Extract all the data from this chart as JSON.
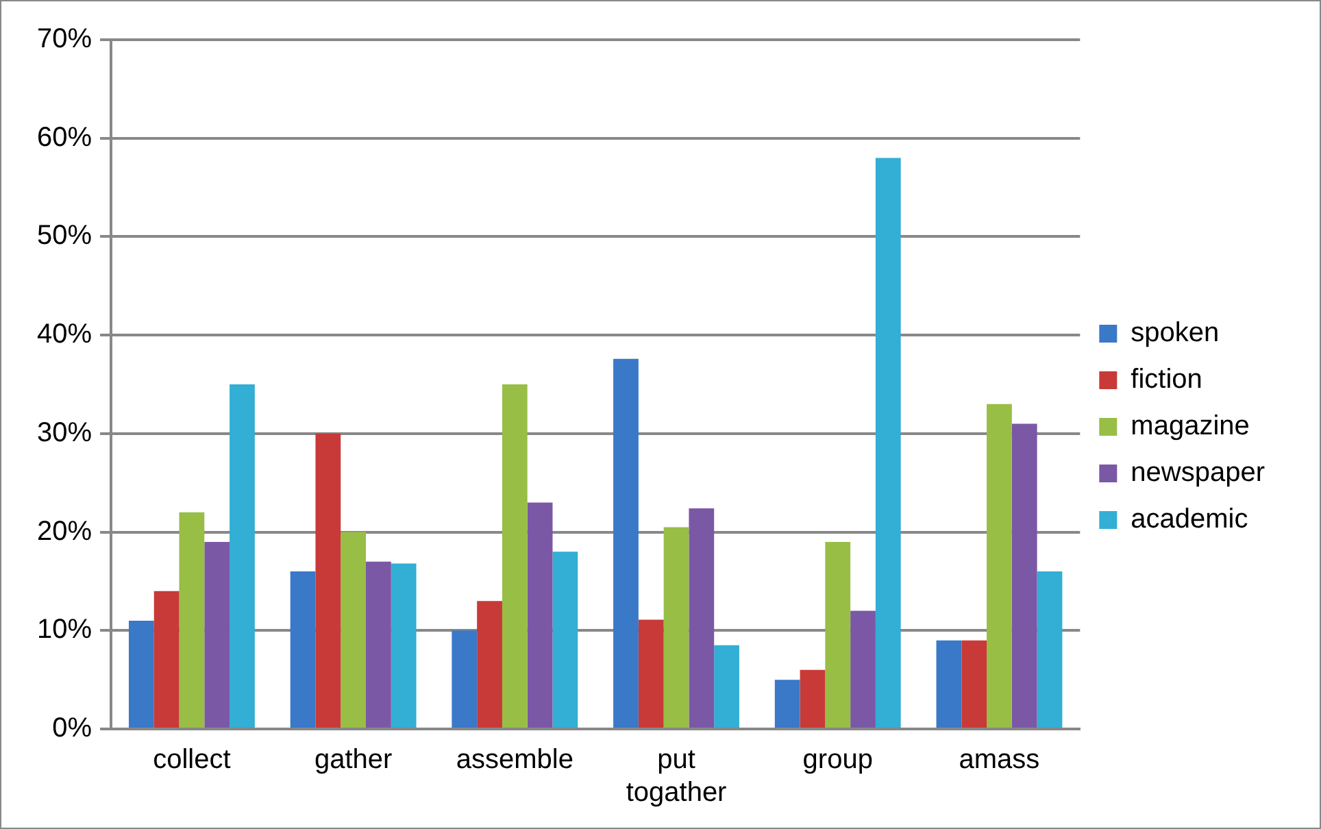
{
  "chart_data": {
    "type": "bar",
    "categories": [
      "collect",
      "gather",
      "assemble",
      "put togather",
      "group",
      "amass"
    ],
    "series": [
      {
        "name": "spoken",
        "color": "#3a78c8",
        "values": [
          11,
          16,
          10,
          37.6,
          5,
          9
        ]
      },
      {
        "name": "fiction",
        "color": "#c83a37",
        "values": [
          14,
          30,
          13,
          11.1,
          6,
          9
        ]
      },
      {
        "name": "magazine",
        "color": "#98be46",
        "values": [
          22,
          20,
          35,
          20.5,
          19,
          33
        ]
      },
      {
        "name": "newspaper",
        "color": "#7a58a6",
        "values": [
          19,
          17,
          23,
          22.4,
          12,
          31
        ]
      },
      {
        "name": "academic",
        "color": "#33aed4",
        "values": [
          35,
          16.8,
          18,
          8.5,
          58,
          16
        ]
      }
    ],
    "ylim": [
      0,
      70
    ],
    "yticks": [
      {
        "value": 0,
        "label": "0%"
      },
      {
        "value": 10,
        "label": "10%"
      },
      {
        "value": 20,
        "label": "20%"
      },
      {
        "value": 30,
        "label": "30%"
      },
      {
        "value": 40,
        "label": "40%"
      },
      {
        "value": 50,
        "label": "50%"
      },
      {
        "value": 60,
        "label": "60%"
      },
      {
        "value": 70,
        "label": "70%"
      }
    ],
    "grid": "y",
    "legend": "right"
  }
}
